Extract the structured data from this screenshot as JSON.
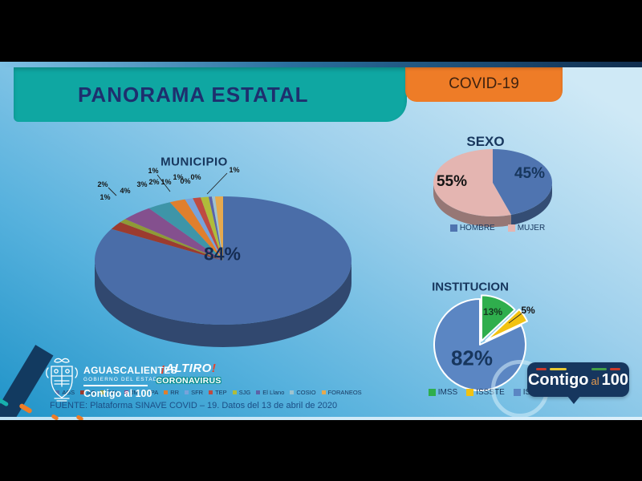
{
  "banner": {
    "title": "PANORAMA ESTATAL",
    "covid": "COVID-19"
  },
  "chart_data": [
    {
      "id": "municipio",
      "type": "pie",
      "style": "3d",
      "title": "MUNICIPIO",
      "categories": [
        "AGS",
        "AS",
        "CAL",
        "JM",
        "PA",
        "RR",
        "SFR",
        "TEP",
        "SJG",
        "El Llano",
        "COSIO",
        "FORANEOS"
      ],
      "values": [
        84,
        2,
        1,
        4,
        3,
        2,
        1,
        1,
        1,
        0,
        0,
        1
      ],
      "labels": [
        "84%",
        "2%",
        "1%",
        "4%",
        "3%",
        "2%",
        "1%",
        "1%",
        "1%",
        "0%",
        "0%",
        "1%"
      ],
      "colors": [
        "#4a6da8",
        "#9c3b2e",
        "#8f9a36",
        "#84508e",
        "#3e95a8",
        "#e07f2d",
        "#77a3db",
        "#bf4b41",
        "#b0bc3a",
        "#5c62a8",
        "#9fc3cf",
        "#e6a94e"
      ],
      "legend_position": "bottom",
      "start_angle": "top",
      "clockwise": true
    },
    {
      "id": "sexo",
      "type": "pie",
      "style": "3d",
      "title": "SEXO",
      "categories": [
        "HOMBRE",
        "MUJER"
      ],
      "values": [
        45,
        55
      ],
      "labels": [
        "45%",
        "55%"
      ],
      "colors": [
        "#4f74b0",
        "#e4b5b1"
      ],
      "legend_position": "bottom",
      "start_angle": "top",
      "clockwise": true
    },
    {
      "id": "institucion",
      "type": "pie",
      "style": "flat",
      "title": "INSTITUCION",
      "categories": [
        "IMSS",
        "ISSSTE",
        "ISSEA"
      ],
      "values": [
        13,
        5,
        82
      ],
      "labels": [
        "13%",
        "5%",
        "82%"
      ],
      "colors": [
        "#2fae4d",
        "#f2c212",
        "#5b86c3"
      ],
      "legend_position": "bottom",
      "start_angle": "top",
      "clockwise": true
    }
  ],
  "logos": {
    "state_name": "AGUASCALIENTES",
    "state_sub": "GOBIERNO DEL ESTADO",
    "state_slogan": "Contigo al 100",
    "altiro": {
      "bang_left": "¡",
      "word": "ALTIRO",
      "bang_right": "!",
      "line2": "CORONAVIRUS"
    }
  },
  "badge": {
    "part1": "Contigo",
    "part2": "al",
    "part3": "100"
  },
  "footer": {
    "source": "FUENTE: Plataforma SINAVE COVID – 19. Datos del 13 de abril de 2020"
  },
  "colors": {
    "banner_teal": "#0fa7a2",
    "banner_orange": "#ee7c27",
    "title_navy": "#1e2f6e",
    "badge_navy": "#16365e",
    "background_light": "#cfe9f6",
    "background_deep": "#1f93c8"
  }
}
